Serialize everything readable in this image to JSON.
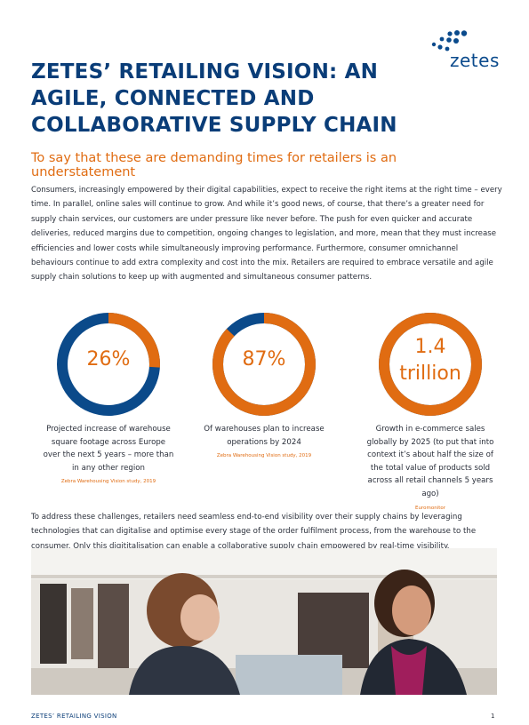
{
  "brand": {
    "logo_text": "zetes",
    "logo_color": "#0a4a8c"
  },
  "title": "ZETES’ RETAILING VISION: AN AGILE, CONNECTED AND COLLABORATIVE SUPPLY CHAIN",
  "subtitle": "To say that these are demanding times for retailers is an understatement",
  "intro": "Consumers, increasingly empowered by their digital capabilities, expect to receive the right items at the right time – every time. In parallel, online sales will continue to grow. And while it’s good news, of course, that there’s a greater need for supply chain services, our customers are under pressure like never before. The push for even quicker and accurate deliveries, reduced margins due to competition, ongoing changes to legislation, and more, mean that they must increase efficiencies and lower costs while simultaneously improving performance. Furthermore, consumer omnichannel behaviours continue to add extra complexity and cost into the mix. Retailers are required to embrace versatile and agile supply chain solutions to keep up with augmented and simultaneous consumer patterns.",
  "colors": {
    "accent": "#e06c12",
    "primary": "#0a3d78",
    "ring_base": "#0b4a8a"
  },
  "stats": [
    {
      "value": "26%",
      "fraction": 0.26,
      "description": "Projected increase of warehouse square footage across Europe over the next 5 years – more than in any other region",
      "source": "Zebra Warehousing Vision study, 2019"
    },
    {
      "value": "87%",
      "fraction": 0.87,
      "description": "Of warehouses plan to increase operations by 2024",
      "source": "Zebra Warehousing Vision study, 2019"
    },
    {
      "value_line1": "1.4",
      "value_line2": "trillion",
      "fraction": 1.0,
      "description": "Growth in e-commerce sales globally by 2025 (to put that into context it’s about half the size of the total value of products sold across all retail channels 5 years ago)",
      "source": "Euromonitor"
    }
  ],
  "paragraph2": "To address these challenges, retailers need seamless end-to-end visibility over their supply chains by leveraging technologies that can digitalise and optimise every stage of the order fulfilment process, from the warehouse to the consumer. Only this digititalisation can enable a collaborative supply chain empowered by real-time visibility.",
  "footer": {
    "label": "ZETES’ RETAILING VISION",
    "page_number": "1"
  }
}
